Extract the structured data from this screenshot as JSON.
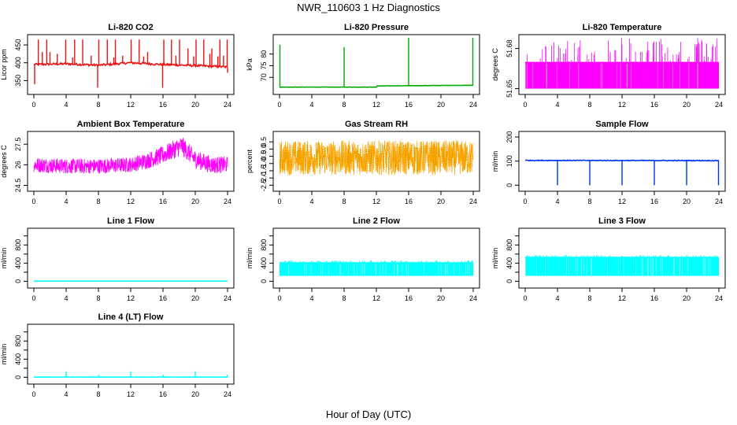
{
  "figure": {
    "title": "NWR_110603  1 Hz Diagnostics",
    "xlabel": "Hour of Day (UTC)"
  },
  "chart_data": [
    {
      "type": "line",
      "title": "Li-820 CO2",
      "ylabel": "Licor ppm",
      "color": "#ee1111",
      "xlim": [
        0,
        24
      ],
      "xticks": [
        0,
        4,
        8,
        12,
        16,
        20,
        24
      ],
      "ylim": [
        320,
        470
      ],
      "yticks": [
        350,
        400,
        450
      ],
      "pattern": "baseline-spikes",
      "baseline": [
        [
          0,
          395
        ],
        [
          4,
          397
        ],
        [
          8,
          393
        ],
        [
          12,
          400
        ],
        [
          16,
          395
        ],
        [
          20,
          392
        ],
        [
          24,
          388
        ]
      ],
      "noise": 3,
      "spikes": [
        [
          0.1,
          340
        ],
        [
          0.55,
          465
        ],
        [
          1.05,
          430
        ],
        [
          1.6,
          465
        ],
        [
          3.95,
          465
        ],
        [
          5.05,
          465
        ],
        [
          6.05,
          465
        ],
        [
          7.9,
          330
        ],
        [
          8.05,
          465
        ],
        [
          9.1,
          465
        ],
        [
          10.1,
          465
        ],
        [
          12.05,
          465
        ],
        [
          13.05,
          465
        ],
        [
          14.1,
          430
        ],
        [
          15.95,
          330
        ],
        [
          16.1,
          465
        ],
        [
          17.05,
          465
        ],
        [
          18.05,
          465
        ],
        [
          19.1,
          440
        ],
        [
          20.1,
          465
        ],
        [
          21.05,
          465
        ],
        [
          22.05,
          440
        ],
        [
          23.05,
          465
        ],
        [
          23.95,
          465
        ],
        [
          24.0,
          372
        ]
      ],
      "small_spikes": [
        [
          2.0,
          430
        ],
        [
          2.9,
          425
        ],
        [
          4.8,
          415
        ],
        [
          7.1,
          420
        ],
        [
          9.9,
          415
        ],
        [
          11.0,
          420
        ],
        [
          13.6,
          418
        ],
        [
          17.6,
          420
        ],
        [
          19.8,
          418
        ],
        [
          21.8,
          425
        ],
        [
          22.8,
          418
        ],
        [
          23.5,
          420
        ]
      ]
    },
    {
      "type": "line",
      "title": "Li-820 Pressure",
      "ylabel": "kPa",
      "color": "#00aa00",
      "xlim": [
        0,
        24
      ],
      "xticks": [
        0,
        4,
        8,
        12,
        16,
        20,
        24
      ],
      "ylim": [
        64,
        87
      ],
      "yticks": [
        70,
        75,
        80
      ],
      "pattern": "baseline-spikes",
      "baseline": [
        [
          0,
          65.8
        ],
        [
          12,
          65.8
        ],
        [
          12.1,
          66.3
        ],
        [
          24,
          66.6
        ]
      ],
      "noise": 0.05,
      "spikes": [
        [
          0.05,
          84
        ],
        [
          8.0,
          83
        ],
        [
          16.0,
          87
        ],
        [
          23.95,
          87
        ]
      ],
      "small_spikes": []
    },
    {
      "type": "line",
      "title": "Li-820 Temperature",
      "ylabel": "degrees C",
      "color": "#ff00ff",
      "xlim": [
        0,
        24
      ],
      "xticks": [
        0,
        4,
        8,
        12,
        16,
        20,
        24
      ],
      "ylim": [
        51.648,
        51.688
      ],
      "yticks": [
        51.65,
        51.68
      ],
      "pattern": "toggle",
      "low": 51.65,
      "high": 51.67,
      "top": 51.688,
      "spike_density": 0.35
    },
    {
      "type": "line",
      "title": "Ambient Box Temperature",
      "ylabel": "degrees C",
      "color": "#ff00ff",
      "xlim": [
        0,
        24
      ],
      "xticks": [
        0,
        4,
        8,
        12,
        16,
        20,
        24
      ],
      "ylim": [
        24.3,
        28.2
      ],
      "yticks": [
        24.5,
        26.0,
        27.5
      ],
      "pattern": "band",
      "center": [
        [
          0,
          26.0
        ],
        [
          4,
          25.9
        ],
        [
          8,
          25.9
        ],
        [
          12,
          26.0
        ],
        [
          14,
          26.3
        ],
        [
          16,
          26.7
        ],
        [
          18.3,
          27.4
        ],
        [
          20,
          26.4
        ],
        [
          22,
          26.0
        ],
        [
          24,
          26.0
        ]
      ],
      "halfwidth": [
        [
          0,
          0.55
        ],
        [
          12,
          0.55
        ],
        [
          18,
          0.7
        ],
        [
          24,
          0.6
        ]
      ]
    },
    {
      "type": "line",
      "title": "Gas Stream RH",
      "ylabel": "percent",
      "color": "#ffa500",
      "color2": "#888800",
      "xlim": [
        0,
        24
      ],
      "xticks": [
        0,
        4,
        8,
        12,
        16,
        20,
        24
      ],
      "ylim": [
        -2.7,
        1.0
      ],
      "yticks": [
        -2.5,
        -1.5,
        -0.5,
        0.5
      ],
      "ytick_labels": [
        "-2.5",
        "-1.5",
        "-0.5",
        "0.5"
      ],
      "extra_yticks": [
        -2.0,
        -1.0,
        0.0
      ],
      "extra_ytick_labels": [
        "-2.0",
        "-1.0",
        "0.0"
      ],
      "pattern": "band",
      "center": [
        [
          0,
          -0.6
        ],
        [
          24,
          -0.6
        ]
      ],
      "halfwidth": [
        [
          0,
          1.2
        ],
        [
          24,
          1.2
        ]
      ]
    },
    {
      "type": "line",
      "title": "Sample Flow",
      "ylabel": "ml/min",
      "color": "#0033ee",
      "xlim": [
        0,
        24
      ],
      "xticks": [
        0,
        4,
        8,
        12,
        16,
        20,
        24
      ],
      "ylim": [
        -12,
        210
      ],
      "yticks": [
        0,
        100,
        200
      ],
      "pattern": "baseline-spikes",
      "baseline": [
        [
          0,
          103
        ],
        [
          24,
          102
        ]
      ],
      "noise": 1.5,
      "spikes": [
        [
          4.0,
          0
        ],
        [
          8.0,
          0
        ],
        [
          12.0,
          0
        ],
        [
          16.0,
          0
        ],
        [
          20.0,
          0
        ],
        [
          23.95,
          0
        ]
      ],
      "small_spikes": []
    },
    {
      "type": "line",
      "title": "Line 1 Flow",
      "ylabel": "ml/min",
      "color": "#00ffff",
      "xlim": [
        0,
        24
      ],
      "xticks": [
        0,
        4,
        8,
        12,
        16,
        20,
        24
      ],
      "ylim": [
        -80,
        1100
      ],
      "yticks": [
        0,
        200,
        400,
        600,
        800,
        1000
      ],
      "ytick_labels": [
        "0",
        "",
        "400",
        "",
        "800",
        ""
      ],
      "pattern": "baseline-spikes",
      "baseline": [
        [
          0,
          3
        ],
        [
          24,
          3
        ]
      ],
      "noise": 0,
      "spikes": [],
      "small_spikes": []
    },
    {
      "type": "line",
      "title": "Line 2 Flow",
      "ylabel": "ml/min",
      "color": "#00ffff",
      "xlim": [
        0,
        24
      ],
      "xticks": [
        0,
        4,
        8,
        12,
        16,
        20,
        24
      ],
      "ylim": [
        -80,
        1100
      ],
      "yticks": [
        0,
        200,
        400,
        600,
        800,
        1000
      ],
      "ytick_labels": [
        "0",
        "",
        "400",
        "",
        "800",
        ""
      ],
      "pattern": "toggle",
      "low": 120,
      "high": 420,
      "top": 460,
      "spike_density": 0.6
    },
    {
      "type": "line",
      "title": "Line 3 Flow",
      "ylabel": "ml/min",
      "color": "#00ffff",
      "xlim": [
        0,
        24
      ],
      "xticks": [
        0,
        4,
        8,
        12,
        16,
        20,
        24
      ],
      "ylim": [
        -80,
        1100
      ],
      "yticks": [
        0,
        200,
        400,
        600,
        800,
        1000
      ],
      "ytick_labels": [
        "0",
        "",
        "400",
        "",
        "800",
        ""
      ],
      "pattern": "toggle",
      "low": 120,
      "high": 540,
      "top": 580,
      "spike_density": 0.6
    },
    {
      "type": "line",
      "title": "Line 4 (LT) Flow",
      "ylabel": "ml/min",
      "color": "#00ffff",
      "xlim": [
        0,
        24
      ],
      "xticks": [
        0,
        4,
        8,
        12,
        16,
        20,
        24
      ],
      "ylim": [
        -80,
        1100
      ],
      "yticks": [
        0,
        200,
        400,
        600,
        800,
        1000
      ],
      "ytick_labels": [
        "0",
        "",
        "400",
        "",
        "800",
        ""
      ],
      "pattern": "baseline-spikes",
      "baseline": [
        [
          0,
          5
        ],
        [
          24,
          5
        ]
      ],
      "noise": 2,
      "spikes": [
        [
          4.0,
          130
        ],
        [
          8.05,
          60
        ],
        [
          12.0,
          130
        ],
        [
          16.05,
          60
        ],
        [
          20.0,
          130
        ],
        [
          23.95,
          60
        ]
      ],
      "small_spikes": []
    }
  ]
}
